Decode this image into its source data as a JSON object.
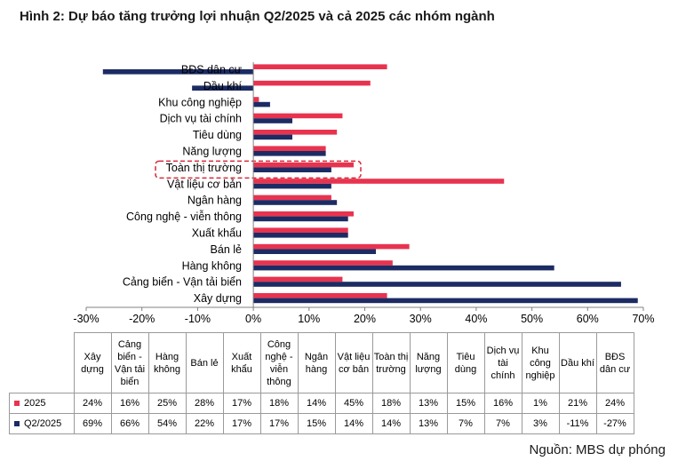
{
  "figure": {
    "title": "Hình 2: Dự báo tăng trưởng lợi nhuận Q2/2025 và cả 2025 các nhóm ngành",
    "source": "Nguồn: MBS dự phóng"
  },
  "colors": {
    "s2025": "#e8334f",
    "sq2": "#1c2b63",
    "highlight": "#d9283a",
    "axis": "#808080"
  },
  "chart_data": {
    "type": "bar",
    "orientation": "horizontal",
    "categories": [
      "BĐS dân cư",
      "Dầu khí",
      "Khu công nghiệp",
      "Dịch vụ tài chính",
      "Tiêu dùng",
      "Năng lượng",
      "Toàn thị trường",
      "Vật liệu cơ bản",
      "Ngân hàng",
      "Công nghệ - viễn thông",
      "Xuất khẩu",
      "Bán lẻ",
      "Hàng không",
      "Cảng biển - Vận tải biển",
      "Xây dựng"
    ],
    "highlighted_category": "Toàn thị trường",
    "series": [
      {
        "name": "2025",
        "values": [
          24,
          21,
          1,
          16,
          15,
          13,
          18,
          45,
          14,
          18,
          17,
          28,
          25,
          16,
          24
        ]
      },
      {
        "name": "Q2/2025",
        "values": [
          -27,
          -11,
          3,
          7,
          7,
          13,
          14,
          14,
          15,
          17,
          17,
          22,
          54,
          66,
          69
        ]
      }
    ],
    "xlim": [
      -30,
      70
    ],
    "xticks": [
      -30,
      -20,
      -10,
      0,
      10,
      20,
      30,
      40,
      50,
      60,
      70
    ],
    "tick_suffix": "%",
    "gridlines": false,
    "legend_placement": "table-left"
  },
  "table": {
    "headers": [
      "Xây dựng",
      "Cảng biển - Vận tải biển",
      "Hàng không",
      "Bán lẻ",
      "Xuất khẩu",
      "Công nghệ - viễn thông",
      "Ngân hàng",
      "Vật liệu cơ bản",
      "Toàn thị trường",
      "Năng lượng",
      "Tiêu dùng",
      "Dịch vụ tài chính",
      "Khu công nghiệp",
      "Dầu khí",
      "BĐS dân cư"
    ],
    "rows": [
      {
        "label": "2025",
        "cells": [
          "24%",
          "16%",
          "25%",
          "28%",
          "17%",
          "18%",
          "14%",
          "45%",
          "18%",
          "13%",
          "15%",
          "16%",
          "1%",
          "21%",
          "24%"
        ]
      },
      {
        "label": "Q2/2025",
        "cells": [
          "69%",
          "66%",
          "54%",
          "22%",
          "17%",
          "17%",
          "15%",
          "14%",
          "14%",
          "13%",
          "7%",
          "7%",
          "3%",
          "-11%",
          "-27%"
        ]
      }
    ]
  }
}
